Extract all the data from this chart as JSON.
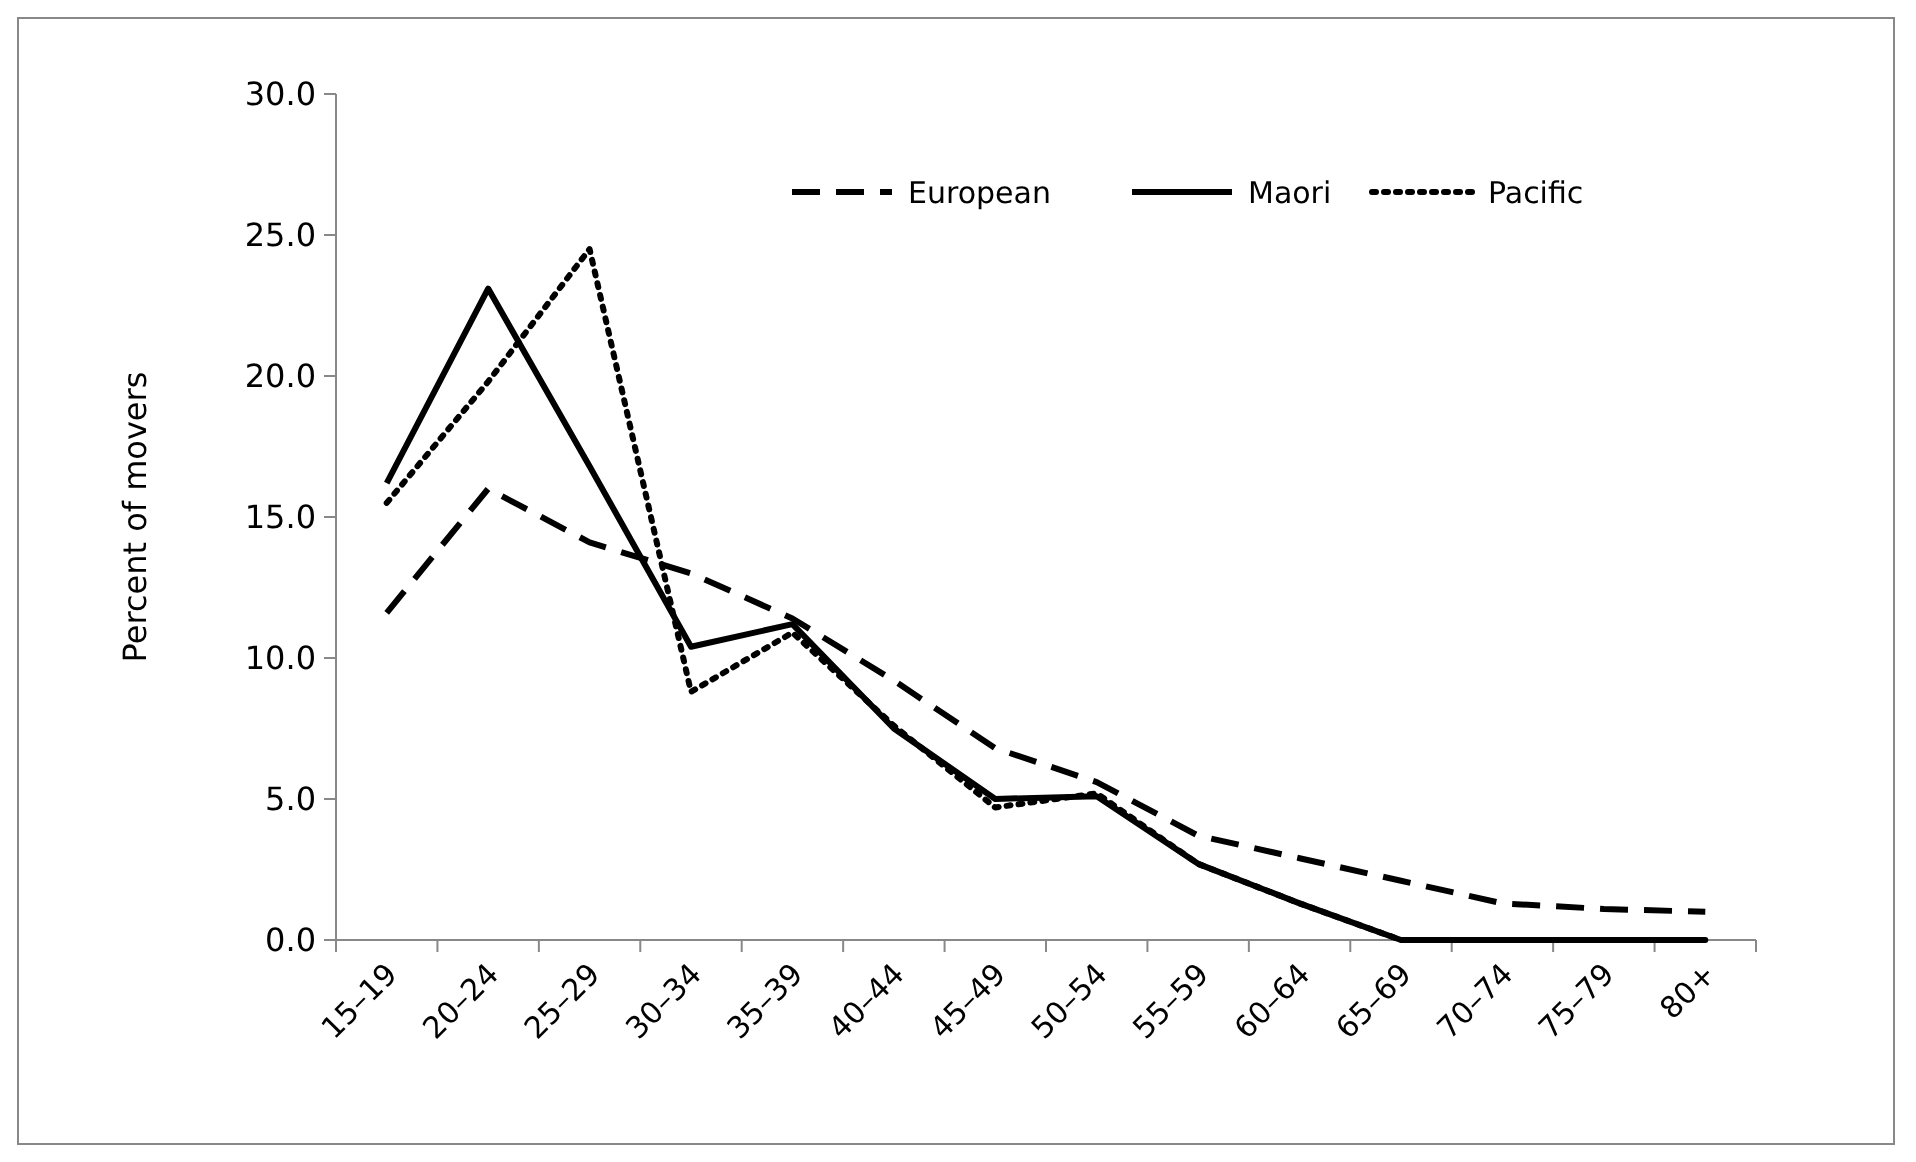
{
  "chart_data": {
    "type": "line",
    "ylabel": "Percent of movers",
    "categories": [
      "15–19",
      "20–24",
      "25–29",
      "30–34",
      "35–39",
      "40–44",
      "45–49",
      "50–54",
      "55–59",
      "60–64",
      "65–69",
      "70–74",
      "75–79",
      "80+"
    ],
    "ylim": [
      0,
      30
    ],
    "yticks": [
      {
        "value": 0,
        "label": "0.0"
      },
      {
        "value": 5,
        "label": "5.0"
      },
      {
        "value": 10,
        "label": "10.0"
      },
      {
        "value": 15,
        "label": "15.0"
      },
      {
        "value": 20,
        "label": "20.0"
      },
      {
        "value": 25,
        "label": "25.0"
      },
      {
        "value": 30,
        "label": "30.0"
      }
    ],
    "grid": false,
    "legend": "top right",
    "series": [
      {
        "name": "European",
        "color": "#000000",
        "line_style": "dashed",
        "values": [
          11.6,
          16.0,
          14.1,
          13.0,
          11.4,
          9.2,
          6.8,
          5.6,
          3.7,
          2.9,
          2.1,
          1.3,
          1.1,
          1.0
        ]
      },
      {
        "name": "Maori",
        "color": "#000000",
        "line_style": "solid",
        "values": [
          16.2,
          23.1,
          16.8,
          10.4,
          11.2,
          7.5,
          5.0,
          5.1,
          2.7,
          1.3,
          0,
          0,
          0,
          0
        ]
      },
      {
        "name": "Pacific",
        "color": "#000000",
        "line_style": "dotted",
        "values": [
          15.5,
          19.8,
          24.5,
          8.8,
          10.9,
          7.6,
          4.7,
          5.2,
          2.7,
          1.3,
          0,
          0,
          0,
          0
        ]
      }
    ]
  }
}
